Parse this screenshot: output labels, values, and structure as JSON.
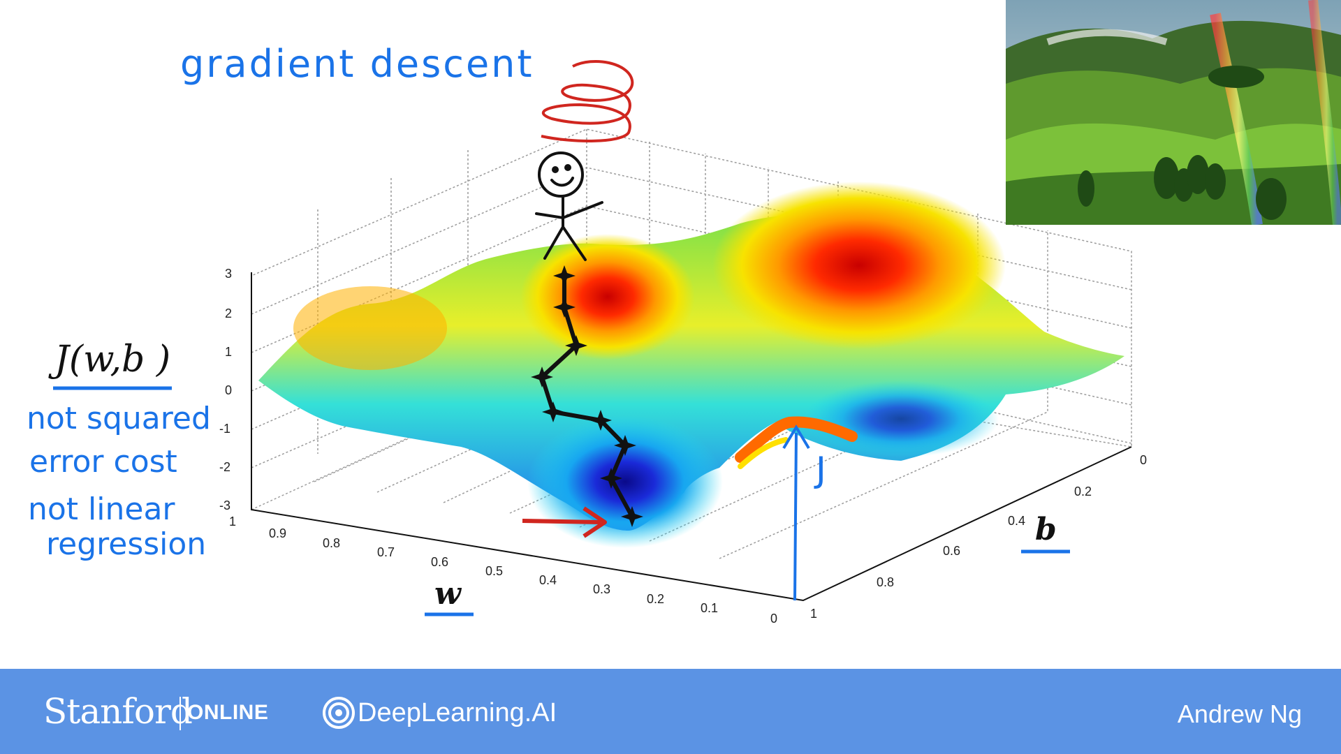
{
  "annotations": {
    "title": "gradient descent",
    "cost_label": "J(w,b )",
    "note_line1": "not squared",
    "note_line2": "error cost",
    "note_line3": "not linear",
    "note_line4": "regression",
    "j_marker": "J"
  },
  "chart_data": {
    "type": "surface",
    "xlabel": "w",
    "ylabel": "b",
    "zlabel": "",
    "x_ticks": [
      "0",
      "0.1",
      "0.2",
      "0.3",
      "0.4",
      "0.5",
      "0.6",
      "0.7",
      "0.8",
      "0.9",
      "1"
    ],
    "y_ticks": [
      "0",
      "0.2",
      "0.4",
      "0.6",
      "0.8",
      "1"
    ],
    "z_ticks": [
      "-3",
      "-2",
      "-1",
      "0",
      "1",
      "2",
      "3"
    ],
    "xlim": [
      0,
      1
    ],
    "ylim": [
      0,
      1
    ],
    "zlim": [
      -3,
      3
    ],
    "grid": true,
    "colormap": "jet"
  },
  "footer": {
    "stanford": "Stanford",
    "online": "ONLINE",
    "deeplearning": "DeepLearning.AI",
    "author": "Andrew Ng"
  },
  "colors": {
    "footer_bg": "#5b93e4",
    "ink_blue": "#1a73e8",
    "ink_red": "#d0261f",
    "ink_black": "#111111"
  }
}
